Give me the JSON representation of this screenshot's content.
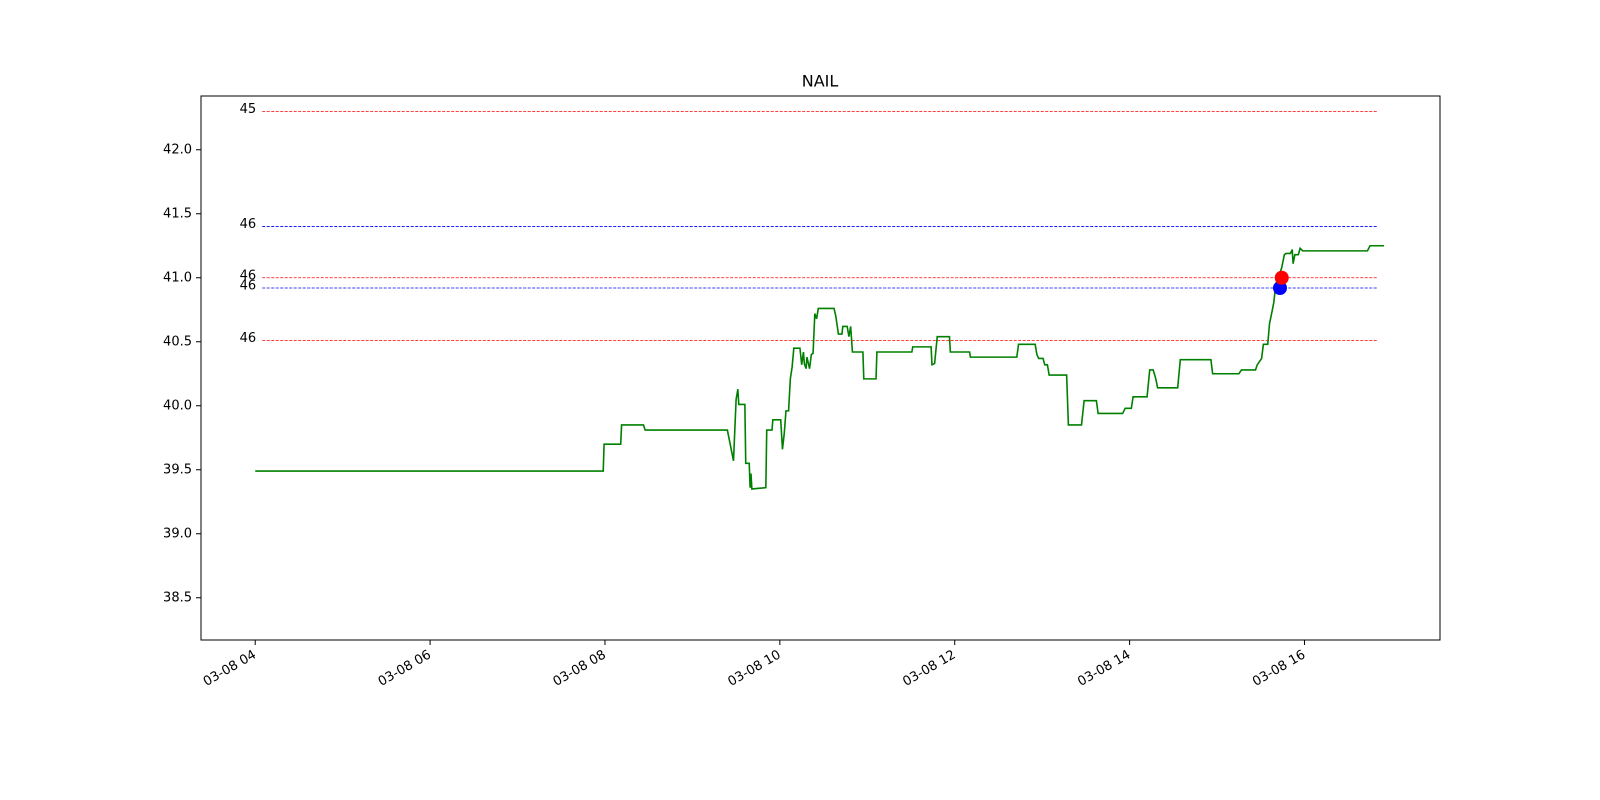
{
  "chart_data": {
    "type": "line",
    "title": "NAIL",
    "color": "green",
    "x": [
      4.0,
      7.98,
      7.99,
      8.18,
      8.19,
      8.44,
      8.46,
      9.4,
      9.47,
      9.5,
      9.52,
      9.53,
      9.6,
      9.61,
      9.65,
      9.66,
      9.67,
      9.68,
      9.84,
      9.85,
      9.91,
      9.92,
      10.01,
      10.03,
      10.05,
      10.07,
      10.1,
      10.12,
      10.14,
      10.16,
      10.23,
      10.25,
      10.27,
      10.28,
      10.3,
      10.31,
      10.34,
      10.36,
      10.38,
      10.4,
      10.42,
      10.44,
      10.62,
      10.64,
      10.67,
      10.71,
      10.72,
      10.77,
      10.79,
      10.81,
      10.83,
      10.95,
      10.96,
      11.1,
      11.11,
      11.51,
      11.52,
      11.73,
      11.74,
      11.77,
      11.8,
      11.94,
      11.95,
      12.17,
      12.18,
      12.71,
      12.73,
      12.92,
      12.94,
      12.96,
      13.01,
      13.03,
      13.06,
      13.08,
      13.28,
      13.3,
      13.45,
      13.48,
      13.62,
      13.64,
      13.92,
      13.95,
      14.02,
      14.04,
      14.2,
      14.23,
      14.27,
      14.3,
      14.32,
      14.55,
      14.58,
      14.93,
      14.95,
      15.25,
      15.28,
      15.44,
      15.46,
      15.51,
      15.53,
      15.58,
      15.6,
      15.63,
      15.65,
      15.67,
      15.7,
      15.72,
      15.74,
      15.77,
      15.79,
      15.84,
      15.86,
      15.87,
      15.89,
      15.93,
      15.95,
      15.98,
      16.72,
      16.75,
      16.91
    ],
    "values": [
      39.49,
      39.49,
      39.7,
      39.7,
      39.85,
      39.85,
      39.81,
      39.81,
      39.57,
      40.05,
      40.13,
      40.01,
      40.01,
      39.55,
      39.55,
      39.36,
      39.47,
      39.35,
      39.36,
      39.81,
      39.81,
      39.89,
      39.89,
      39.66,
      39.78,
      39.96,
      39.96,
      40.21,
      40.3,
      40.45,
      40.45,
      40.32,
      40.42,
      40.33,
      40.29,
      40.38,
      40.29,
      40.4,
      40.41,
      40.72,
      40.68,
      40.76,
      40.76,
      40.7,
      40.56,
      40.56,
      40.62,
      40.62,
      40.54,
      40.62,
      40.42,
      40.42,
      40.21,
      40.21,
      40.42,
      40.42,
      40.46,
      40.46,
      40.32,
      40.33,
      40.54,
      40.54,
      40.42,
      40.42,
      40.38,
      40.38,
      40.48,
      40.48,
      40.4,
      40.37,
      40.37,
      40.32,
      40.32,
      40.24,
      40.24,
      39.85,
      39.85,
      40.04,
      40.04,
      39.94,
      39.94,
      39.98,
      39.98,
      40.07,
      40.07,
      40.28,
      40.28,
      40.21,
      40.14,
      40.14,
      40.36,
      40.36,
      40.25,
      40.25,
      40.28,
      40.28,
      40.32,
      40.37,
      40.48,
      40.48,
      40.64,
      40.74,
      40.81,
      40.94,
      41.0,
      41.04,
      41.08,
      41.18,
      41.19,
      41.19,
      41.22,
      41.11,
      41.18,
      41.18,
      41.23,
      41.21,
      41.21,
      41.25,
      41.25
    ],
    "hlines_span": [
      4.08,
      16.84
    ],
    "hlines": [
      {
        "value": 42.3,
        "label": "45",
        "color": "red"
      },
      {
        "value": 41.4,
        "label": "46",
        "color": "blue"
      },
      {
        "value": 41.0,
        "label": "46",
        "color": "red"
      },
      {
        "value": 40.92,
        "label": "46",
        "color": "blue"
      },
      {
        "value": 40.51,
        "label": "46",
        "color": "red"
      }
    ],
    "points": [
      {
        "x": 15.72,
        "y": 40.92,
        "color": "blue"
      },
      {
        "x": 15.74,
        "y": 41.0,
        "color": "red"
      }
    ],
    "xlim": [
      3.38,
      17.55
    ],
    "xticks": [
      {
        "value": 4,
        "label": "03-08 04"
      },
      {
        "value": 6,
        "label": "03-08 06"
      },
      {
        "value": 8,
        "label": "03-08 08"
      },
      {
        "value": 10,
        "label": "03-08 10"
      },
      {
        "value": 12,
        "label": "03-08 12"
      },
      {
        "value": 14,
        "label": "03-08 14"
      },
      {
        "value": 16,
        "label": "03-08 16"
      }
    ],
    "ylim": [
      38.17,
      42.42
    ],
    "yticks": [
      38.5,
      {
        "value": 39,
        "label": "39.0"
      },
      39.5,
      {
        "value": 40,
        "label": "40.0"
      },
      40.5,
      {
        "value": 41,
        "label": "41.0"
      },
      41.5,
      {
        "value": 42,
        "label": "42.0"
      }
    ]
  }
}
